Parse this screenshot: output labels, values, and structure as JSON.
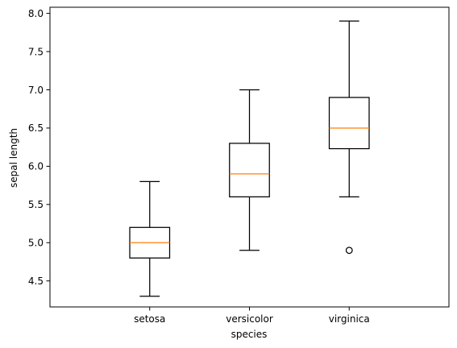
{
  "chart_data": {
    "type": "box",
    "xlabel": "species",
    "ylabel": "sepal length",
    "categories": [
      "setosa",
      "versicolor",
      "virginica"
    ],
    "ylim": [
      4.16,
      8.08
    ],
    "yticks": [
      4.5,
      5.0,
      5.5,
      6.0,
      6.5,
      7.0,
      7.5,
      8.0
    ],
    "ytick_labels": [
      "4.5",
      "5.0",
      "5.5",
      "6.0",
      "6.5",
      "7.0",
      "7.5",
      "8.0"
    ],
    "grid": false,
    "boxes": [
      {
        "category": "setosa",
        "whisker_low": 4.3,
        "q1": 4.8,
        "median": 5.0,
        "q3": 5.2,
        "whisker_high": 5.8,
        "outliers": []
      },
      {
        "category": "versicolor",
        "whisker_low": 4.9,
        "q1": 5.6,
        "median": 5.9,
        "q3": 6.3,
        "whisker_high": 7.0,
        "outliers": []
      },
      {
        "category": "virginica",
        "whisker_low": 5.6,
        "q1": 6.23,
        "median": 6.5,
        "q3": 6.9,
        "whisker_high": 7.9,
        "outliers": [
          4.9
        ]
      }
    ],
    "colors": {
      "box": "#000000",
      "median": "#ff7f0e",
      "axes": "#000000"
    }
  }
}
